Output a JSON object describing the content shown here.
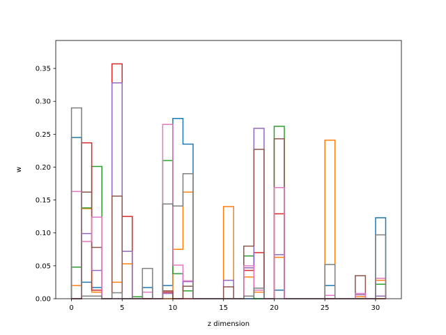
{
  "chart_data": {
    "type": "histogram-step",
    "title": "",
    "xlabel": "z dimension",
    "ylabel": "w",
    "xlim": [
      -1.55,
      32.55
    ],
    "ylim": [
      0,
      0.3925
    ],
    "xticks": [
      0,
      5,
      10,
      15,
      20,
      25,
      30
    ],
    "yticks": [
      0.0,
      0.05,
      0.1,
      0.15,
      0.2,
      0.25,
      0.3,
      0.35
    ],
    "grid": false,
    "legend": "none",
    "bin_edges": [
      0,
      1,
      2,
      3,
      4,
      5,
      6,
      7,
      8,
      9,
      10,
      11,
      12,
      13,
      14,
      15,
      16,
      17,
      18,
      19,
      20,
      21,
      22,
      23,
      24,
      25,
      26,
      27,
      28,
      29,
      30,
      31
    ],
    "series": [
      {
        "color": "#1f77b4",
        "values": [
          0.245,
          0.025,
          0.017,
          0,
          0,
          0,
          0,
          0.017,
          0,
          0.02,
          0.274,
          0.235,
          0,
          0,
          0,
          0,
          0,
          0,
          0,
          0,
          0.013,
          0,
          0,
          0,
          0,
          0.02,
          0,
          0,
          0,
          0,
          0.123
        ]
      },
      {
        "color": "#ff7f0e",
        "values": [
          0.02,
          0.137,
          0.01,
          0,
          0.025,
          0.053,
          0,
          0,
          0,
          0,
          0.075,
          0.162,
          0,
          0,
          0,
          0.14,
          0,
          0.033,
          0.01,
          0,
          0.063,
          0,
          0,
          0,
          0,
          0.241,
          0,
          0,
          0.003,
          0,
          0.028
        ]
      },
      {
        "color": "#2ca02c",
        "values": [
          0.048,
          0.138,
          0.201,
          0,
          0,
          0,
          0.003,
          0,
          0,
          0.21,
          0.038,
          0.012,
          0,
          0,
          0,
          0,
          0,
          0.065,
          0,
          0,
          0.262,
          0,
          0,
          0,
          0,
          0,
          0,
          0,
          0,
          0,
          0.022
        ]
      },
      {
        "color": "#d62728",
        "values": [
          0,
          0.237,
          0.013,
          0,
          0.357,
          0.125,
          0,
          0,
          0,
          0.01,
          0,
          0,
          0,
          0,
          0,
          0,
          0,
          0.043,
          0.07,
          0,
          0.129,
          0,
          0,
          0,
          0,
          0,
          0,
          0,
          0,
          0,
          0
        ]
      },
      {
        "color": "#9467bd",
        "values": [
          0,
          0.099,
          0.043,
          0,
          0.328,
          0.072,
          0,
          0,
          0,
          0.008,
          0,
          0.026,
          0,
          0,
          0,
          0.028,
          0,
          0.047,
          0.259,
          0,
          0.067,
          0,
          0,
          0,
          0,
          0,
          0,
          0,
          0.006,
          0,
          0.004
        ]
      },
      {
        "color": "#8c564b",
        "values": [
          0,
          0.162,
          0.078,
          0,
          0.156,
          0,
          0,
          0,
          0,
          0.012,
          0,
          0.019,
          0,
          0,
          0,
          0.018,
          0,
          0.08,
          0.227,
          0,
          0.243,
          0,
          0,
          0,
          0,
          0,
          0,
          0,
          0.035,
          0,
          0
        ]
      },
      {
        "color": "#e377c2",
        "values": [
          0.163,
          0.087,
          0.124,
          0,
          0,
          0,
          0,
          0.01,
          0,
          0.265,
          0.051,
          0.027,
          0,
          0,
          0,
          0,
          0,
          0.05,
          0.013,
          0,
          0.169,
          0,
          0,
          0,
          0,
          0.005,
          0,
          0,
          0.008,
          0,
          0.031
        ]
      },
      {
        "color": "#7f7f7f",
        "values": [
          0.29,
          0.004,
          0.004,
          0,
          0.009,
          0,
          0,
          0.046,
          0,
          0.144,
          0.141,
          0.19,
          0,
          0,
          0,
          0,
          0,
          0.004,
          0.016,
          0,
          0,
          0,
          0,
          0,
          0,
          0.052,
          0,
          0,
          0,
          0,
          0.097
        ]
      }
    ]
  }
}
